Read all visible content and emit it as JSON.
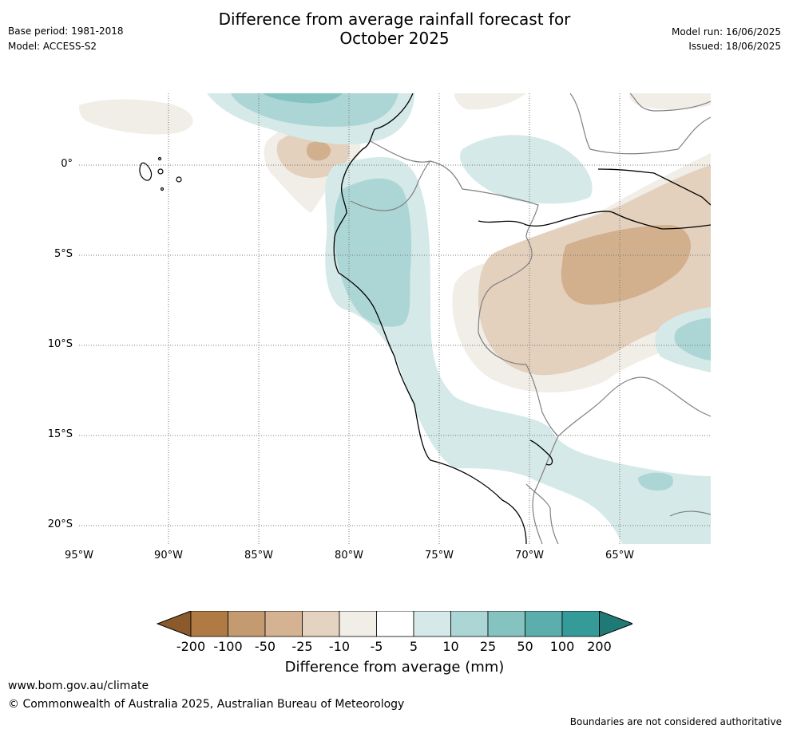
{
  "header": {
    "title_line1": "Difference from average rainfall forecast for",
    "title_line2": "October 2025",
    "base_period": "Base period: 1981-2018",
    "model": "Model: ACCESS-S2",
    "model_run": "Model run: 16/06/2025",
    "issued": "Issued: 18/06/2025"
  },
  "map": {
    "lat_labels": [
      "0°",
      "5°S",
      "10°S",
      "15°S",
      "20°S"
    ],
    "lon_labels": [
      "95°W",
      "90°W",
      "85°W",
      "80°W",
      "75°W",
      "70°W",
      "65°W"
    ],
    "colors": {
      "very_dry": "#d2b08e",
      "dry": "#e3d0bd",
      "slightly_dry": "#f1ede7",
      "slightly_wet": "#d4e9e8",
      "wet": "#acd6d5",
      "very_wet": "#84c3c0",
      "coast": "#000000",
      "border": "#808080",
      "grid": "#777777"
    }
  },
  "colorbar": {
    "ticks": [
      "-200",
      "-100",
      "-50",
      "-25",
      "-10",
      "-5",
      "5",
      "10",
      "25",
      "50",
      "100",
      "200"
    ],
    "colors": [
      "#8a5a2b",
      "#b07a45",
      "#c49a70",
      "#d4b292",
      "#e5d3c1",
      "#f1ede7",
      "#ffffff",
      "#d4e9e8",
      "#acd6d5",
      "#84c3c0",
      "#5caeac",
      "#349b98",
      "#1f7a77"
    ],
    "label": "Difference from average (mm)"
  },
  "footer": {
    "url": "www.bom.gov.au/climate",
    "copyright": "© Commonwealth of Australia 2025, Australian Bureau of Meteorology",
    "disclaimer": "Boundaries are not considered authoritative"
  }
}
